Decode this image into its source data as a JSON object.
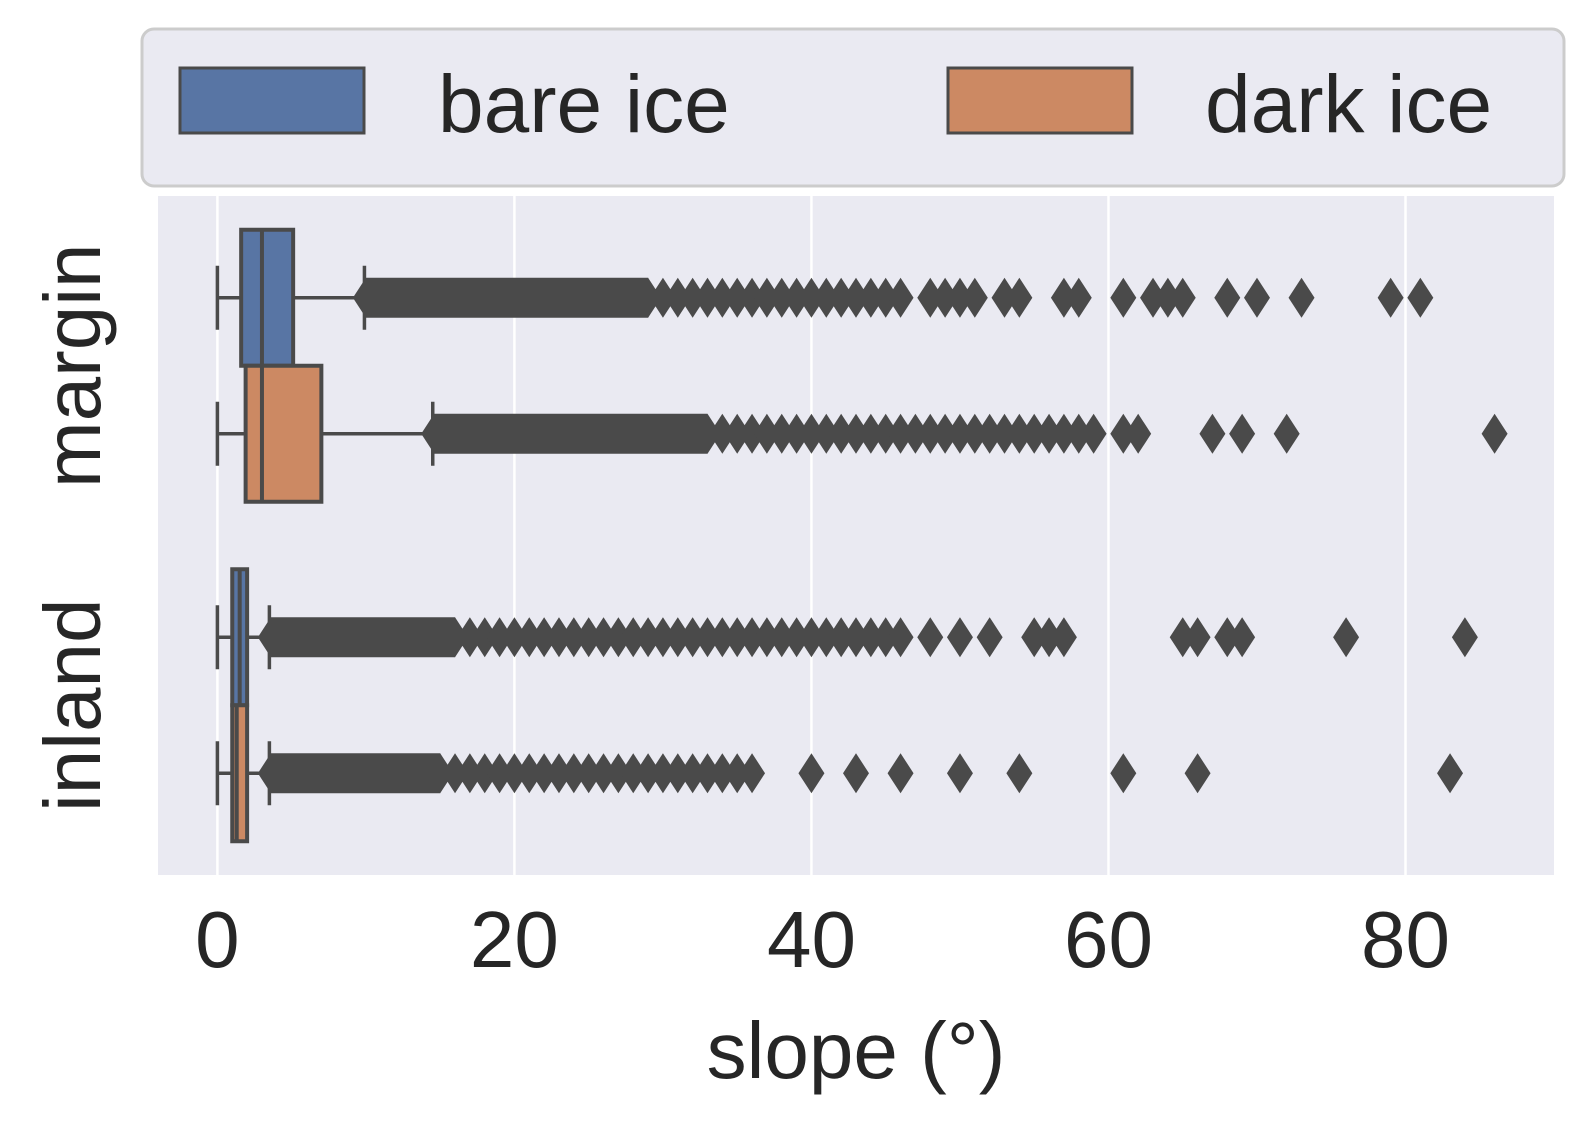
{
  "chart_data": {
    "type": "boxplot",
    "orientation": "horizontal",
    "title": "",
    "xlabel": "slope (°)",
    "ylabel": "",
    "xlim": [
      -4,
      90
    ],
    "xticks": [
      0,
      20,
      40,
      60,
      80
    ],
    "categories": [
      "margin",
      "inland"
    ],
    "grid": true,
    "legend_position": "top",
    "colors": {
      "bare ice": "#5875a4",
      "dark ice": "#cc8963",
      "background": "#eaeaf2",
      "grid": "#ffffff",
      "edge": "#4a4a4a"
    },
    "series": [
      {
        "name": "bare ice",
        "boxes": [
          {
            "category": "margin",
            "whisker_low": 0,
            "q1": 1.6,
            "median": 3.0,
            "q3": 5.1,
            "whisker_high": 9.9,
            "outliers_dense_range": [
              10,
              29
            ],
            "outliers": [
              30,
              31,
              32,
              33,
              34,
              35,
              36,
              37,
              38,
              39,
              40,
              41,
              42,
              43,
              44,
              45,
              46,
              48,
              49,
              50,
              51,
              53,
              54,
              57,
              58,
              61,
              63,
              64,
              65,
              68,
              70,
              73,
              79,
              81
            ]
          },
          {
            "category": "inland",
            "whisker_low": 0,
            "q1": 1.0,
            "median": 1.5,
            "q3": 2.0,
            "whisker_high": 3.5,
            "outliers_dense_range": [
              3.6,
              16
            ],
            "outliers": [
              17,
              18,
              19,
              20,
              21,
              22,
              23,
              24,
              25,
              26,
              27,
              28,
              29,
              30,
              31,
              32,
              33,
              34,
              35,
              36,
              37,
              38,
              39,
              40,
              41,
              42,
              43,
              44,
              45,
              46,
              48,
              50,
              52,
              55,
              56,
              57,
              65,
              66,
              68,
              69,
              76,
              84
            ]
          }
        ]
      },
      {
        "name": "dark ice",
        "boxes": [
          {
            "category": "margin",
            "whisker_low": 0,
            "q1": 1.9,
            "median": 3.0,
            "q3": 7.0,
            "whisker_high": 14.5,
            "outliers_dense_range": [
              14.6,
              33
            ],
            "outliers": [
              34,
              35,
              36,
              37,
              38,
              39,
              40,
              41,
              42,
              43,
              44,
              45,
              46,
              47,
              48,
              49,
              50,
              51,
              52,
              53,
              54,
              55,
              56,
              57,
              58,
              59,
              61,
              62,
              67,
              69,
              72,
              86
            ]
          },
          {
            "category": "inland",
            "whisker_low": 0,
            "q1": 1.0,
            "median": 1.3,
            "q3": 2.0,
            "whisker_high": 3.5,
            "outliers_dense_range": [
              3.6,
              15
            ],
            "outliers": [
              16,
              17,
              18,
              19,
              20,
              21,
              22,
              23,
              24,
              25,
              26,
              27,
              28,
              29,
              30,
              31,
              32,
              33,
              34,
              35,
              36,
              40,
              43,
              46,
              50,
              54,
              61,
              66,
              83
            ]
          }
        ]
      }
    ]
  }
}
